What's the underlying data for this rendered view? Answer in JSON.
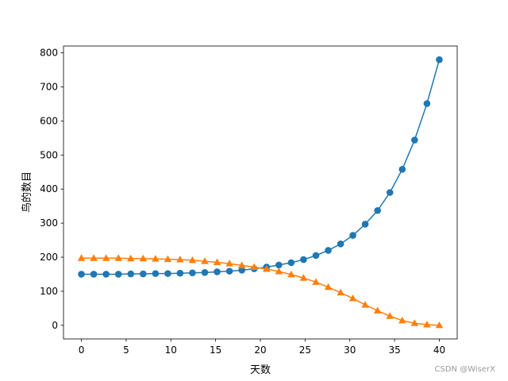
{
  "chart_data": {
    "type": "line",
    "xlabel": "天数",
    "ylabel": "鸟的数目",
    "xlim": [
      -2,
      42
    ],
    "ylim": [
      -40,
      820
    ],
    "xticks": [
      0,
      5,
      10,
      15,
      20,
      25,
      30,
      35,
      40
    ],
    "yticks": [
      0,
      100,
      200,
      300,
      400,
      500,
      600,
      700,
      800
    ],
    "x": [
      0,
      1.38,
      2.76,
      4.14,
      5.52,
      6.9,
      8.28,
      9.66,
      11.03,
      12.41,
      13.79,
      15.17,
      16.55,
      17.93,
      19.31,
      20.69,
      22.07,
      23.45,
      24.83,
      26.21,
      27.59,
      28.97,
      30.34,
      31.72,
      33.1,
      34.48,
      35.86,
      37.24,
      38.62,
      40
    ],
    "series": [
      {
        "color": "#1f77b4",
        "marker": "circle",
        "values": [
          150,
          150,
          150,
          150,
          151,
          151,
          152,
          152,
          153,
          154,
          155,
          157,
          159,
          162,
          166,
          171,
          177,
          184,
          193,
          205,
          220,
          239,
          264,
          297,
          337,
          390,
          458,
          544,
          651,
          780
        ]
      },
      {
        "color": "#ff7f0e",
        "marker": "triangle",
        "values": [
          197,
          197,
          197,
          197,
          196,
          196,
          195,
          194,
          193,
          191,
          188,
          185,
          181,
          176,
          171,
          165,
          158,
          149,
          139,
          127,
          112,
          96,
          79,
          60,
          43,
          27,
          14,
          6,
          2,
          0
        ]
      }
    ]
  },
  "watermark": "CSDN @WiserX"
}
